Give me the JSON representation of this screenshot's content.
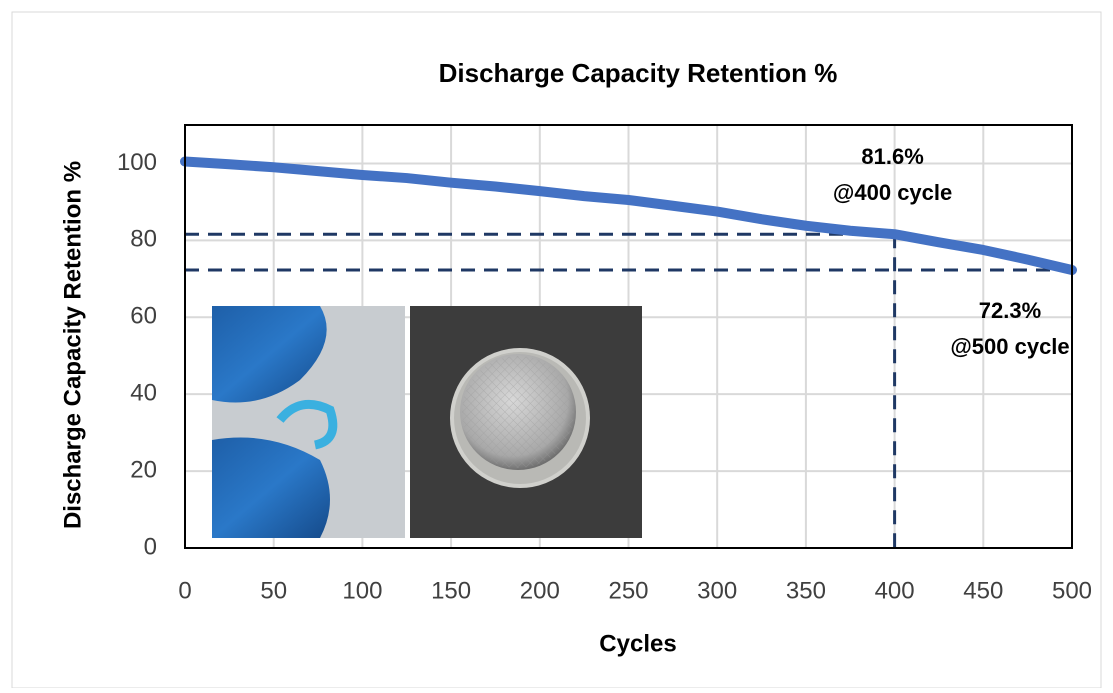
{
  "chart_data": {
    "type": "line",
    "title": "Discharge Capacity Retention %",
    "x_label": "Cycles",
    "y_label": "Discharge Capacity Retention %",
    "x": [
      0,
      25,
      50,
      75,
      100,
      125,
      150,
      175,
      200,
      225,
      250,
      275,
      300,
      325,
      350,
      375,
      400,
      425,
      450,
      475,
      500
    ],
    "series": [
      {
        "color": "#4472c4",
        "values": [
          100.5,
          99.8,
          99,
          98,
          97,
          96.2,
          95,
          94,
          92.8,
          91.5,
          90.5,
          89,
          87.5,
          85.5,
          83.8,
          82.5,
          81.6,
          79.5,
          77.5,
          75,
          72.3
        ]
      }
    ],
    "xlim": [
      0,
      500
    ],
    "xticks": [
      0,
      50,
      100,
      150,
      200,
      250,
      300,
      350,
      400,
      450,
      500
    ],
    "ylim": [
      0,
      110
    ],
    "yticks": [
      0,
      20,
      40,
      60,
      80,
      100
    ],
    "grid": true,
    "annotations": [
      {
        "lines": [
          "81.6%",
          "@400 cycle"
        ],
        "x": 400,
        "y": 81.6
      },
      {
        "lines": [
          "72.3%",
          "@500 cycle"
        ],
        "x": 500,
        "y": 72.3
      }
    ],
    "reference_line_color": "#1f3864"
  }
}
